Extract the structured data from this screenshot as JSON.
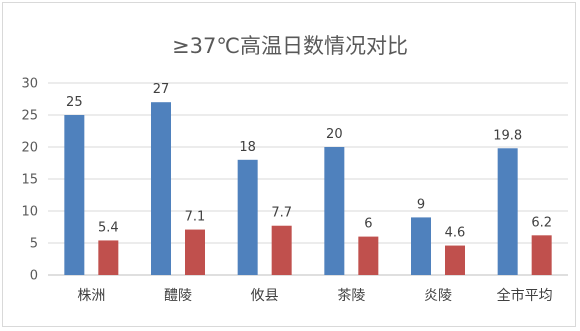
{
  "chart_data": {
    "type": "bar",
    "title": "≥37℃高温日数情况对比",
    "categories": [
      "株洲",
      "醴陵",
      "攸县",
      "茶陵",
      "炎陵",
      "全市平均"
    ],
    "series": [
      {
        "values": [
          25,
          27,
          18,
          20,
          9,
          19.8
        ],
        "labels": [
          "25",
          "27",
          "18",
          "20",
          "9",
          "19.8"
        ],
        "color": "#4f81bd"
      },
      {
        "values": [
          5.4,
          7.1,
          7.7,
          6,
          4.6,
          6.2
        ],
        "labels": [
          "5.4",
          "7.1",
          "7.7",
          "6",
          "4.6",
          "6.2"
        ],
        "color": "#c0504d"
      }
    ],
    "ylim": [
      0,
      30
    ],
    "yticks": [
      0,
      5,
      10,
      15,
      20,
      25,
      30
    ],
    "grid": true,
    "legend": "none"
  }
}
